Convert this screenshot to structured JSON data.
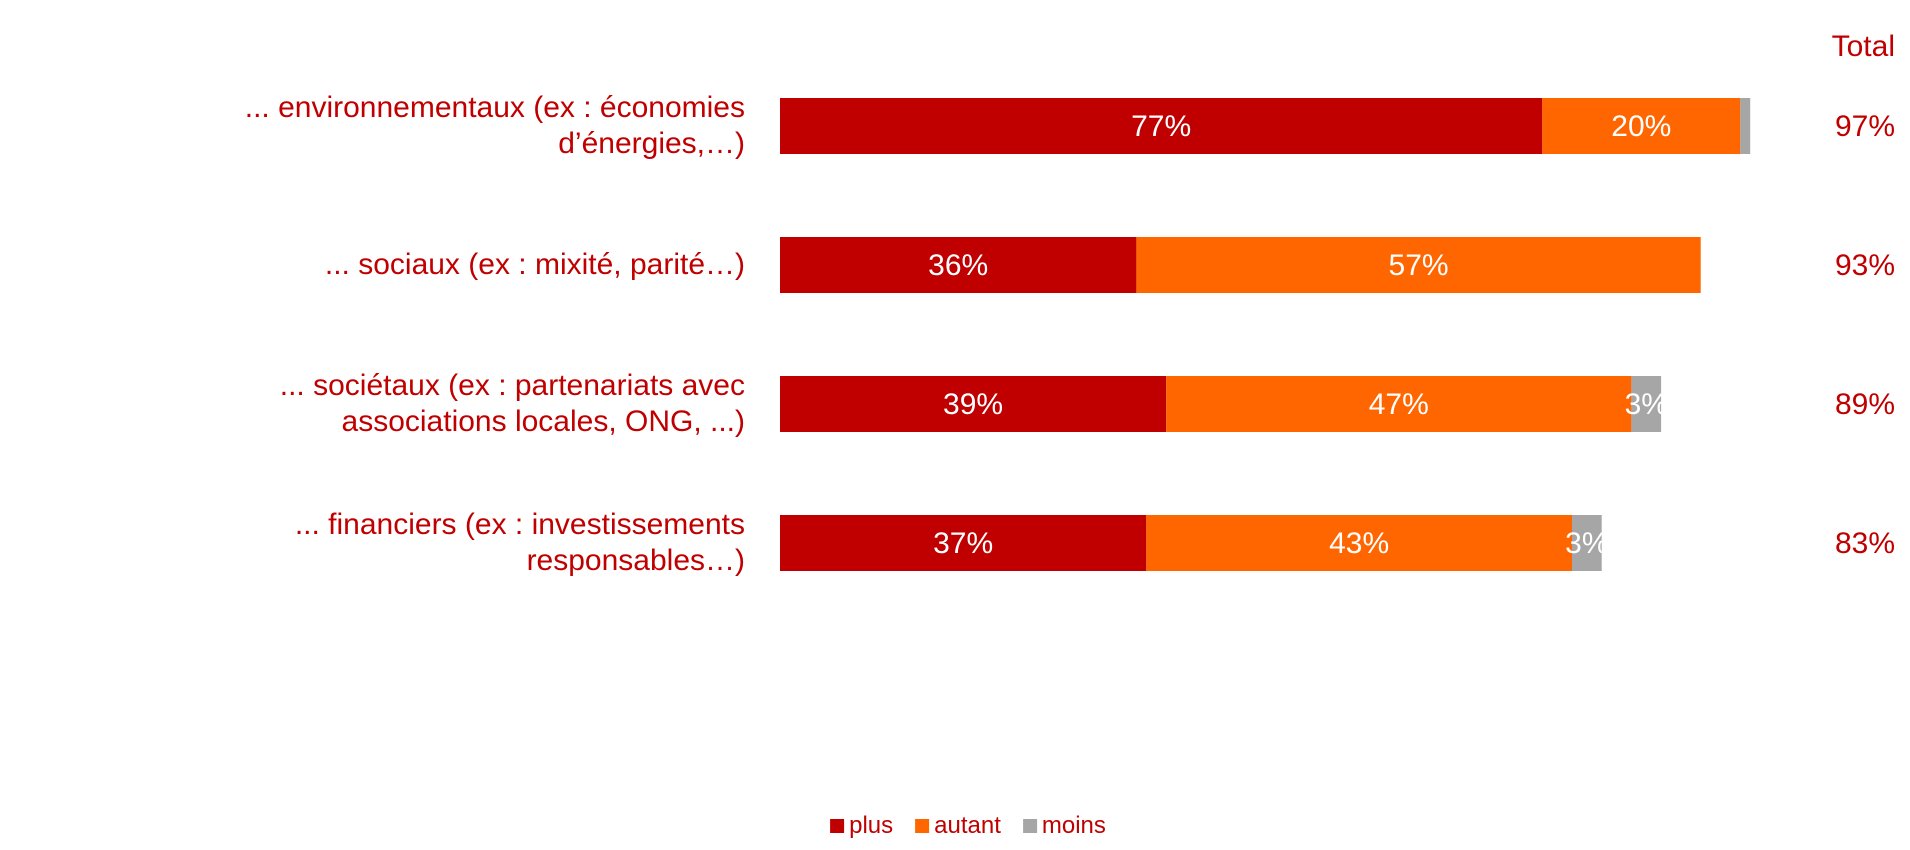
{
  "chart_data": {
    "type": "stacked_barh",
    "categories": [
      "... environnementaux (ex : économies d’énergies,…)",
      "... sociaux (ex : mixité, parité…)",
      "... sociétaux (ex : partenariats avec associations locales, ONG, ...)",
      "... financiers (ex : investissements responsables…)"
    ],
    "series": [
      {
        "name": "plus",
        "color": "#c00000",
        "values": [
          77,
          36,
          39,
          37
        ],
        "value_labels": [
          "77%",
          "36%",
          "39%",
          "37%"
        ]
      },
      {
        "name": "autant",
        "color": "#ff6600",
        "values": [
          20,
          57,
          47,
          43
        ],
        "value_labels": [
          "20%",
          "57%",
          "47%",
          "43%"
        ]
      },
      {
        "name": "moins",
        "color": "#a6a6a6",
        "values": [
          1,
          0,
          3,
          3
        ],
        "value_labels": [
          null,
          null,
          "3%",
          "3%"
        ]
      }
    ],
    "totals": {
      "title": "Total",
      "values": [
        97,
        93,
        89,
        83
      ],
      "value_labels": [
        "97%",
        "93%",
        "89%",
        "83%"
      ]
    },
    "legend": "bottom"
  }
}
